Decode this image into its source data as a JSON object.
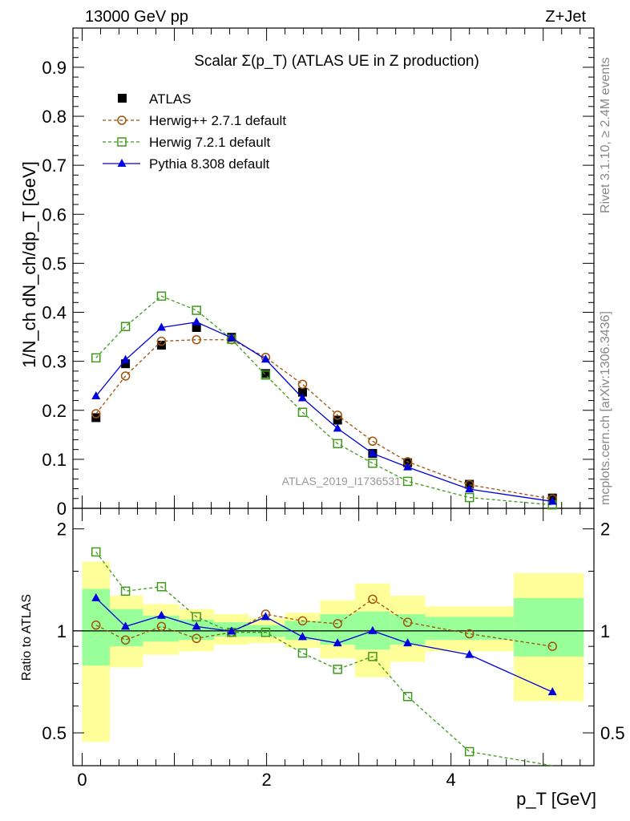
{
  "header": {
    "left": "13000 GeV pp",
    "right": "Z+Jet"
  },
  "side": {
    "rivet": "Rivet 3.1.10, ≥ 2.4M events",
    "mcplots": "mcplots.cern.ch [arXiv:1306.3436]"
  },
  "watermark": "ATLAS_2019_I1736531",
  "colors": {
    "data": "#000000",
    "herwigpp": "#a0520a",
    "herwig7": "#3e9a1a",
    "pythia": "#0000dd",
    "band_yellow": "#ffff99",
    "band_green": "#99ff99"
  },
  "chart_data": [
    {
      "type": "line",
      "title": "Scalar Σ(p_T) (ATLAS UE in Z production)",
      "xlabel": "p_T [GeV]",
      "ylabel": "1/N_ch dN_ch/dp_T [GeV]",
      "xlim": [
        -0.1,
        5.55
      ],
      "ylim": [
        0,
        0.98
      ],
      "yticks": [
        "0",
        "0.1",
        "0.2",
        "0.3",
        "0.4",
        "0.5",
        "0.6",
        "0.7",
        "0.8",
        "0.9"
      ],
      "xticks": [
        "0",
        "2",
        "4"
      ],
      "legend": [
        "ATLAS",
        "Herwig++ 2.7.1 default",
        "Herwig 7.2.1 default",
        "Pythia 8.308 default"
      ],
      "legend_position": "top-left",
      "x": [
        0.15,
        0.47,
        0.86,
        1.24,
        1.62,
        1.99,
        2.39,
        2.77,
        3.15,
        3.53,
        4.2,
        5.1
      ],
      "series": [
        {
          "name": "ATLAS",
          "values": [
            0.185,
            0.295,
            0.333,
            0.369,
            0.349,
            0.275,
            0.237,
            0.18,
            0.112,
            0.093,
            0.049,
            0.021
          ]
        },
        {
          "name": "Herwig++ 2.7.1 default",
          "values": [
            0.193,
            0.27,
            0.341,
            0.344,
            0.344,
            0.308,
            0.253,
            0.19,
            0.137,
            0.095,
            0.048,
            0.019
          ]
        },
        {
          "name": "Herwig 7.2.1 default",
          "values": [
            0.307,
            0.371,
            0.433,
            0.404,
            0.345,
            0.272,
            0.196,
            0.132,
            0.092,
            0.055,
            0.022,
            0.007
          ]
        },
        {
          "name": "Pythia 8.308 default",
          "values": [
            0.229,
            0.303,
            0.369,
            0.38,
            0.348,
            0.304,
            0.225,
            0.163,
            0.112,
            0.084,
            0.039,
            0.014
          ]
        }
      ]
    },
    {
      "type": "line",
      "ylabel": "Ratio to ATLAS",
      "xlim": [
        -0.1,
        5.55
      ],
      "ylim": [
        0.4,
        2.3
      ],
      "log_y": true,
      "yticks": [
        "0.5",
        "1",
        "2"
      ],
      "bins": [
        [
          0,
          0.3
        ],
        [
          0.3,
          0.66
        ],
        [
          0.66,
          1.05
        ],
        [
          1.05,
          1.43
        ],
        [
          1.43,
          1.81
        ],
        [
          1.81,
          2.2
        ],
        [
          2.2,
          2.58
        ],
        [
          2.58,
          2.96
        ],
        [
          2.96,
          3.34
        ],
        [
          3.34,
          3.72
        ],
        [
          3.72,
          4.68
        ],
        [
          4.68,
          5.44
        ]
      ],
      "band_yellow": [
        [
          0.47,
          1.6
        ],
        [
          0.78,
          1.27
        ],
        [
          0.85,
          1.2
        ],
        [
          0.87,
          1.16
        ],
        [
          0.91,
          1.12
        ],
        [
          0.92,
          1.09
        ],
        [
          0.89,
          1.13
        ],
        [
          0.83,
          1.23
        ],
        [
          0.73,
          1.38
        ],
        [
          0.81,
          1.27
        ],
        [
          0.87,
          1.18
        ],
        [
          0.62,
          1.48
        ]
      ],
      "band_green": [
        [
          0.79,
          1.33
        ],
        [
          0.9,
          1.16
        ],
        [
          0.93,
          1.11
        ],
        [
          0.94,
          1.08
        ],
        [
          0.96,
          1.06
        ],
        [
          0.96,
          1.04
        ],
        [
          0.94,
          1.07
        ],
        [
          0.91,
          1.12
        ],
        [
          0.88,
          1.14
        ],
        [
          0.91,
          1.12
        ],
        [
          0.94,
          1.1
        ],
        [
          0.84,
          1.25
        ]
      ],
      "x": [
        0.15,
        0.47,
        0.86,
        1.24,
        1.62,
        1.99,
        2.39,
        2.77,
        3.15,
        3.53,
        4.2,
        5.1
      ],
      "series": [
        {
          "name": "Herwig++ 2.7.1 default",
          "values": [
            1.04,
            0.94,
            1.03,
            0.95,
            0.99,
            1.12,
            1.07,
            1.05,
            1.24,
            1.06,
            0.98,
            0.9
          ]
        },
        {
          "name": "Herwig 7.2.1 default",
          "values": [
            1.71,
            1.31,
            1.35,
            1.1,
            0.99,
            0.99,
            0.86,
            0.77,
            0.84,
            0.64,
            0.44,
            0.33
          ]
        },
        {
          "name": "Pythia 8.308 default",
          "values": [
            1.25,
            1.03,
            1.11,
            1.03,
            0.997,
            1.1,
            0.96,
            0.92,
            1.0,
            0.92,
            0.85,
            0.66
          ]
        }
      ]
    }
  ]
}
